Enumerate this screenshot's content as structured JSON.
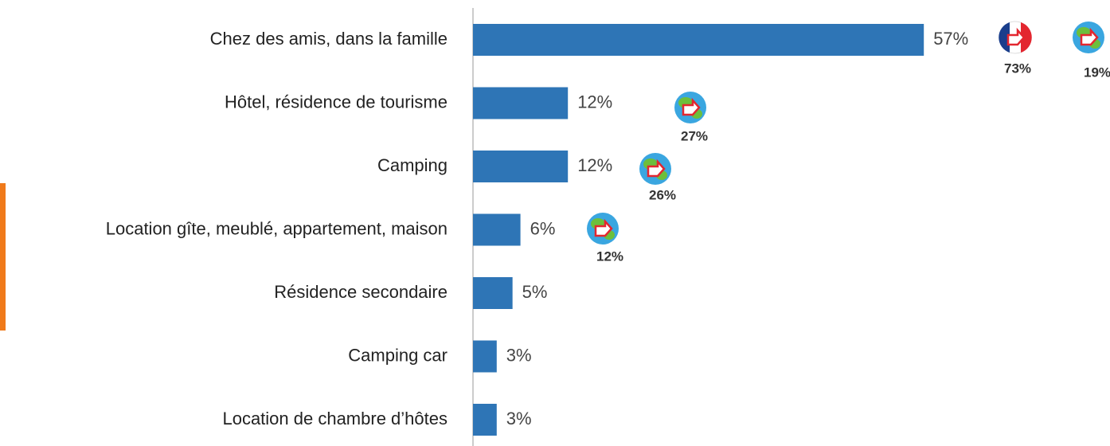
{
  "chart_data": {
    "type": "bar",
    "orientation": "horizontal",
    "categories": [
      "Chez des amis, dans la famille",
      "Hôtel, résidence de tourisme",
      "Camping",
      "Location gîte, meublé, appartement, maison",
      "Résidence secondaire",
      "Camping car",
      "Location de chambre d’hôtes"
    ],
    "values": [
      57,
      12,
      12,
      6,
      5,
      3,
      3
    ],
    "value_labels": [
      "57%",
      "12%",
      "12%",
      "6%",
      "5%",
      "3%",
      "3%"
    ],
    "color": "#2e75b6",
    "xlim": [
      0,
      60
    ],
    "annotations": [
      "73%",
      "19%",
      "27%",
      "26%",
      "12%"
    ]
  }
}
